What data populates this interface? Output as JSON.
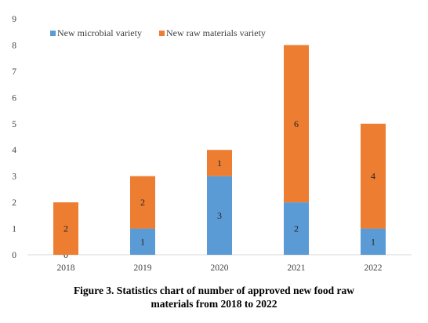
{
  "chart_data": {
    "type": "bar",
    "stacked": true,
    "categories": [
      "2018",
      "2019",
      "2020",
      "2021",
      "2022"
    ],
    "series": [
      {
        "name": "New microbial variety",
        "values": [
          0,
          1,
          3,
          2,
          1
        ],
        "color": "#5B9BD5"
      },
      {
        "name": "New raw materials variety",
        "values": [
          2,
          2,
          1,
          6,
          4
        ],
        "color": "#ED7D31"
      }
    ],
    "ylim": [
      0,
      9
    ],
    "yticks": [
      "0",
      "1",
      "2",
      "3",
      "4",
      "5",
      "6",
      "7",
      "8",
      "9"
    ],
    "grid": false,
    "legend_position": "top-left",
    "data_labels": true
  },
  "caption": {
    "line1": "Figure 3. Statistics  chart of number of  approved new food raw",
    "line2": "materials from 2018 to 2022"
  }
}
